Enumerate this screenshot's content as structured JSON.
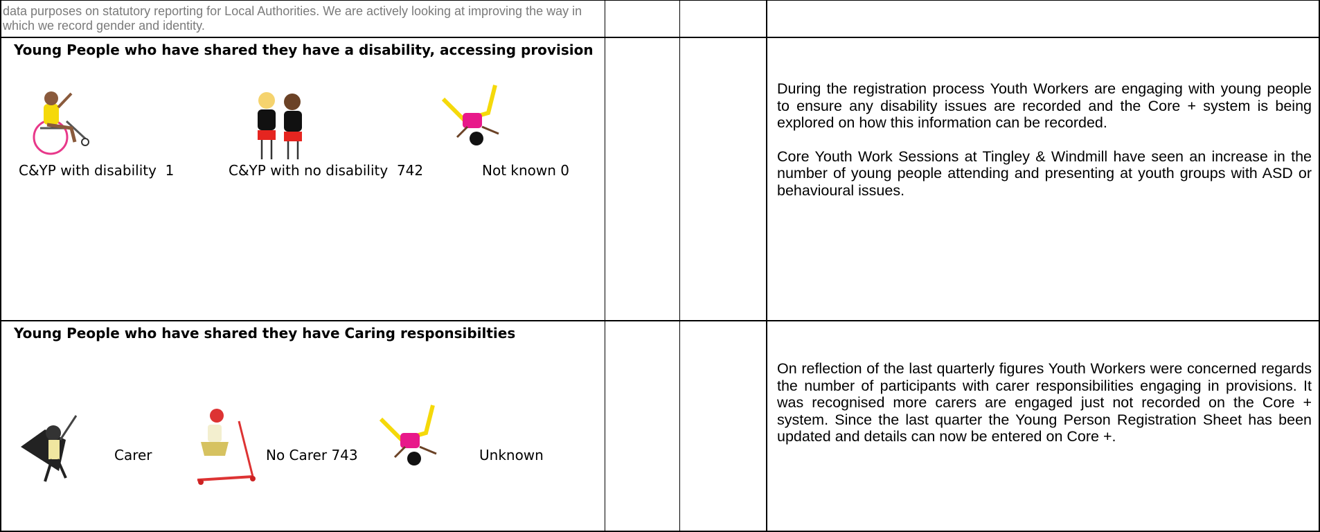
{
  "table": {
    "rows": [
      {
        "text": "data purposes on statutory reporting for Local Authorities. We are actively looking at improving the way in which we record gender and identity."
      },
      {
        "heading": "Young People who have shared they have a disability, accessing provision",
        "labels": [
          "C&YP with disability  1",
          "C&YP with no disability  742",
          "Not known 0"
        ],
        "notes": [
          "During the registration process Youth Workers are engaging with young people to ensure any disability issues are recorded and the Core + system is being explored on how this information can be recorded.",
          "Core Youth Work Sessions at Tingley & Windmill have seen an increase in the number of young people attending and presenting at youth groups with ASD or behavioural issues."
        ]
      },
      {
        "heading": "Young People who have shared they have Caring responsibilties",
        "labels": [
          "Carer",
          "No Carer 743",
          "Unknown"
        ],
        "notes": [
          "On reflection of the last quarterly figures Youth Workers were concerned regards the number of participants with carer responsibilities engaging in provisions. It was recognised more carers are engaged just not recorded on the Core + system. Since the last quarter the Young Person Registration Sheet has been updated and details can now be entered on Core +."
        ]
      }
    ]
  }
}
